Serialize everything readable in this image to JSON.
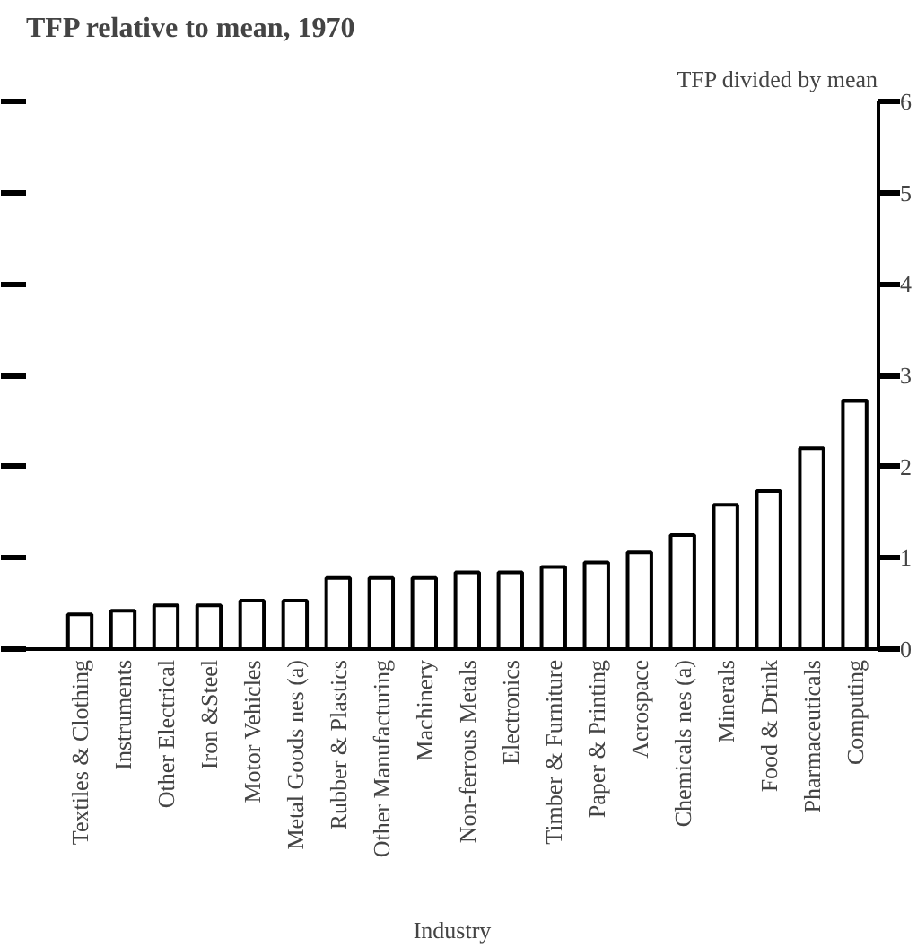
{
  "chart_data": {
    "type": "bar",
    "title": "TFP relative to mean, 1970",
    "ylabel": "TFP divided by mean",
    "xlabel": "Industry",
    "categories": [
      "Textiles & Clothing",
      "Instruments",
      "Other Electrical",
      "Iron &Steel",
      "Motor Vehicles",
      "Metal Goods nes (a)",
      "Rubber & Plastics",
      "Other Manufacturing",
      "Machinery",
      "Non-ferrous Metals",
      "Electronics",
      "Timber & Furniture",
      "Paper & Printing",
      "Aerospace",
      "Chemicals nes (a)",
      "Minerals",
      "Food & Drink",
      "Pharmaceuticals",
      "Computing"
    ],
    "values": [
      0.38,
      0.42,
      0.48,
      0.48,
      0.53,
      0.53,
      0.78,
      0.78,
      0.78,
      0.84,
      0.84,
      0.9,
      0.95,
      1.06,
      1.25,
      1.58,
      1.73,
      2.2,
      2.72
    ],
    "color": "#ffffff",
    "ylim": [
      0,
      6
    ],
    "yticks": [
      0,
      1,
      2,
      3,
      4,
      5,
      6
    ],
    "grid": false
  }
}
